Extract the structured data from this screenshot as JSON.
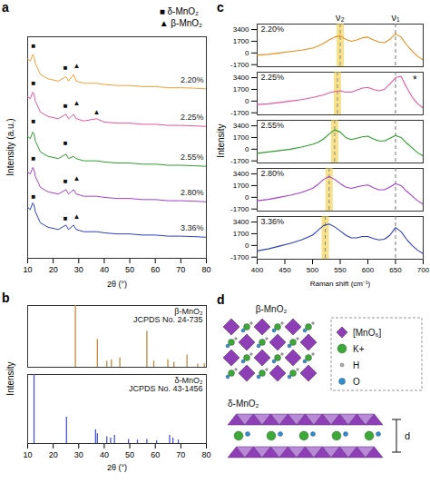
{
  "chart_data": [
    {
      "panel": "a",
      "type": "line",
      "x_label": "2θ (°)",
      "y_label": "Intensity (a.u.)",
      "x": [
        10,
        11,
        12,
        12.5,
        13,
        15,
        18,
        22,
        25,
        26,
        28,
        29,
        32,
        37,
        40,
        45,
        50,
        55,
        60,
        65,
        70,
        75,
        80
      ],
      "xlim": [
        10,
        80
      ],
      "xticks": [
        10,
        20,
        30,
        40,
        50,
        60,
        70,
        80
      ],
      "ylim": [
        0,
        100
      ],
      "tick_labels": "x",
      "legend": "top-right",
      "legend_items": [
        {
          "symbol": "■",
          "label": "δ-MnO₂"
        },
        {
          "symbol": "▲",
          "label": "β-MnO₂"
        }
      ],
      "series": [
        {
          "name": "2.20%",
          "color": "#f5a031",
          "values": [
            90,
            89,
            92,
            91,
            88,
            83,
            81,
            80,
            82,
            80,
            83,
            80,
            79,
            79,
            78.5,
            78,
            78,
            77.5,
            77.5,
            77,
            77,
            76.8,
            76.5
          ],
          "markers": [
            {
              "x": 12.3,
              "y": 96,
              "symbol": "■"
            },
            {
              "x": 24.8,
              "y": 86,
              "symbol": "■"
            },
            {
              "x": 29.2,
              "y": 87,
              "symbol": "▲"
            }
          ]
        },
        {
          "name": "2.25%",
          "color": "#e8559a",
          "values": [
            73,
            72,
            75,
            74,
            71,
            66,
            64,
            63,
            65,
            63,
            65,
            63,
            62,
            63,
            61.5,
            61,
            61,
            60.5,
            60.5,
            60,
            60,
            59.8,
            59.5
          ],
          "markers": [
            {
              "x": 12.3,
              "y": 79,
              "symbol": "■"
            },
            {
              "x": 24.8,
              "y": 69,
              "symbol": "■"
            },
            {
              "x": 29.2,
              "y": 70,
              "symbol": "▲"
            },
            {
              "x": 37,
              "y": 66,
              "symbol": "▲"
            }
          ]
        },
        {
          "name": "2.55%",
          "color": "#2e9e2e",
          "values": [
            55,
            54,
            57,
            56,
            53,
            48,
            46,
            45,
            47,
            45,
            46,
            45,
            44,
            44,
            43.5,
            43,
            43,
            42.5,
            42.5,
            42,
            42,
            41.8,
            41.5
          ],
          "markers": [
            {
              "x": 12.3,
              "y": 62,
              "symbol": "■"
            },
            {
              "x": 24.8,
              "y": 52,
              "symbol": "■"
            }
          ]
        },
        {
          "name": "2.80%",
          "color": "#a63fd0",
          "values": [
            39,
            38,
            41,
            40,
            37,
            32,
            30,
            29,
            31,
            29,
            31,
            29,
            28,
            28,
            27.5,
            27,
            27,
            26.5,
            26.5,
            26,
            26,
            25.8,
            25.5
          ],
          "markers": [
            {
              "x": 12.3,
              "y": 45,
              "symbol": "■"
            },
            {
              "x": 24.8,
              "y": 35,
              "symbol": "■"
            },
            {
              "x": 29.2,
              "y": 36,
              "symbol": "▲"
            }
          ]
        },
        {
          "name": "3.36%",
          "color": "#2f3fbf",
          "values": [
            23,
            22,
            25,
            24,
            21,
            16,
            14,
            13,
            15,
            13,
            15,
            13,
            12,
            12,
            11.5,
            11,
            11,
            10.5,
            10.5,
            10,
            10,
            9.8,
            9.5
          ],
          "markers": [
            {
              "x": 12.3,
              "y": 28,
              "symbol": "■"
            },
            {
              "x": 24.8,
              "y": 18,
              "symbol": "■"
            },
            {
              "x": 29.2,
              "y": 19,
              "symbol": "▲"
            }
          ]
        }
      ]
    },
    {
      "panel": "b",
      "type": "stick",
      "x_label": "2θ (°)",
      "y_label": "Intensity",
      "xlim": [
        10,
        80
      ],
      "xticks": [
        10,
        20,
        30,
        40,
        50,
        60,
        70,
        80
      ],
      "ylim": [
        0,
        100
      ],
      "tick_labels": "x",
      "series": [
        {
          "name": "β-MnO₂",
          "source": "JCPDS No. 24-735",
          "color": "#c08a3e",
          "x": [
            28.7,
            37.3,
            41.0,
            42.8,
            46.1,
            56.7,
            59.4,
            64.9,
            67.3,
            72.4,
            76.6,
            79.2
          ],
          "values": [
            100,
            45,
            10,
            12,
            15,
            58,
            10,
            12,
            8,
            20,
            5,
            6
          ]
        },
        {
          "name": "δ-MnO₂",
          "source": "JCPDS No. 43-1456",
          "color": "#4a54d6",
          "x": [
            12.5,
            25.2,
            36.6,
            37.3,
            41.0,
            42.5,
            44.0,
            49.5,
            53.0,
            56.7,
            60.5,
            65.6,
            66.9,
            69.0
          ],
          "values": [
            100,
            38,
            20,
            14,
            10,
            8,
            12,
            6,
            5,
            6,
            4,
            12,
            8,
            5
          ]
        }
      ]
    },
    {
      "panel": "c",
      "type": "line",
      "x_label": "Raman shift (cm⁻¹)",
      "y_label": "Intensity",
      "x": [
        400,
        420,
        440,
        460,
        480,
        500,
        510,
        520,
        530,
        540,
        550,
        560,
        570,
        580,
        590,
        600,
        610,
        620,
        630,
        640,
        650,
        660,
        670,
        680,
        690,
        700
      ],
      "xlim": [
        400,
        700
      ],
      "xticks": [
        400,
        450,
        500,
        550,
        600,
        650,
        700
      ],
      "ylim": [
        -2000,
        4200
      ],
      "yticks": [
        -1700,
        0,
        1700,
        3400
      ],
      "reference_line": {
        "label": "ν₁",
        "x": 650
      },
      "band": {
        "label": "ν₂",
        "x": [
          550,
          545,
          540,
          530,
          523
        ]
      },
      "annotations": [
        {
          "text": "*",
          "x": 685,
          "y": 3000,
          "series": "2.25%"
        }
      ],
      "series": [
        {
          "name": "2.20%",
          "color": "#f08c1c",
          "values": [
            -300,
            -200,
            0,
            200,
            400,
            700,
            1000,
            1400,
            1900,
            2300,
            2500,
            2000,
            1700,
            1900,
            2200,
            2300,
            1900,
            1600,
            1500,
            2000,
            2800,
            2300,
            1200,
            300,
            -500,
            -1000
          ]
        },
        {
          "name": "2.25%",
          "color": "#e8559a",
          "values": [
            -500,
            -400,
            -200,
            0,
            200,
            500,
            700,
            900,
            1200,
            1400,
            1500,
            1300,
            1300,
            1600,
            1900,
            2000,
            1700,
            1500,
            1700,
            2500,
            3400,
            3600,
            2000,
            600,
            -400,
            -1000
          ]
        },
        {
          "name": "2.55%",
          "color": "#2e9e2e",
          "values": [
            -600,
            -400,
            -200,
            0,
            300,
            700,
            1000,
            1500,
            2200,
            2800,
            2500,
            1700,
            1400,
            1600,
            1800,
            1900,
            1500,
            1200,
            1200,
            1600,
            2000,
            1700,
            900,
            200,
            -500,
            -1000
          ]
        },
        {
          "name": "2.80%",
          "color": "#a63fd0",
          "values": [
            -500,
            -300,
            0,
            300,
            700,
            1300,
            1900,
            2600,
            3000,
            2600,
            2000,
            1500,
            1300,
            1500,
            1700,
            1800,
            1400,
            1100,
            1100,
            1500,
            2000,
            1700,
            900,
            200,
            -500,
            -1000
          ]
        },
        {
          "name": "3.36%",
          "color": "#2f3fbf",
          "values": [
            -800,
            -500,
            -100,
            300,
            800,
            1500,
            2200,
            2900,
            3100,
            2700,
            2100,
            1500,
            1100,
            1100,
            1300,
            1300,
            1000,
            800,
            900,
            1500,
            2600,
            2000,
            900,
            0,
            -700,
            -1200
          ]
        }
      ]
    }
  ],
  "diagram": {
    "panel": "d",
    "structures": [
      "β-MnO₂",
      "δ-MnO₂"
    ],
    "key": [
      {
        "label": "[MnO₆]",
        "color": "#8e3fb5"
      },
      {
        "label": "K+",
        "color": "#3aa935"
      },
      {
        "label": "H",
        "color": "#b0b0b0"
      },
      {
        "label": "O",
        "color": "#2a8fd6"
      }
    ],
    "spacing_label": "d"
  }
}
